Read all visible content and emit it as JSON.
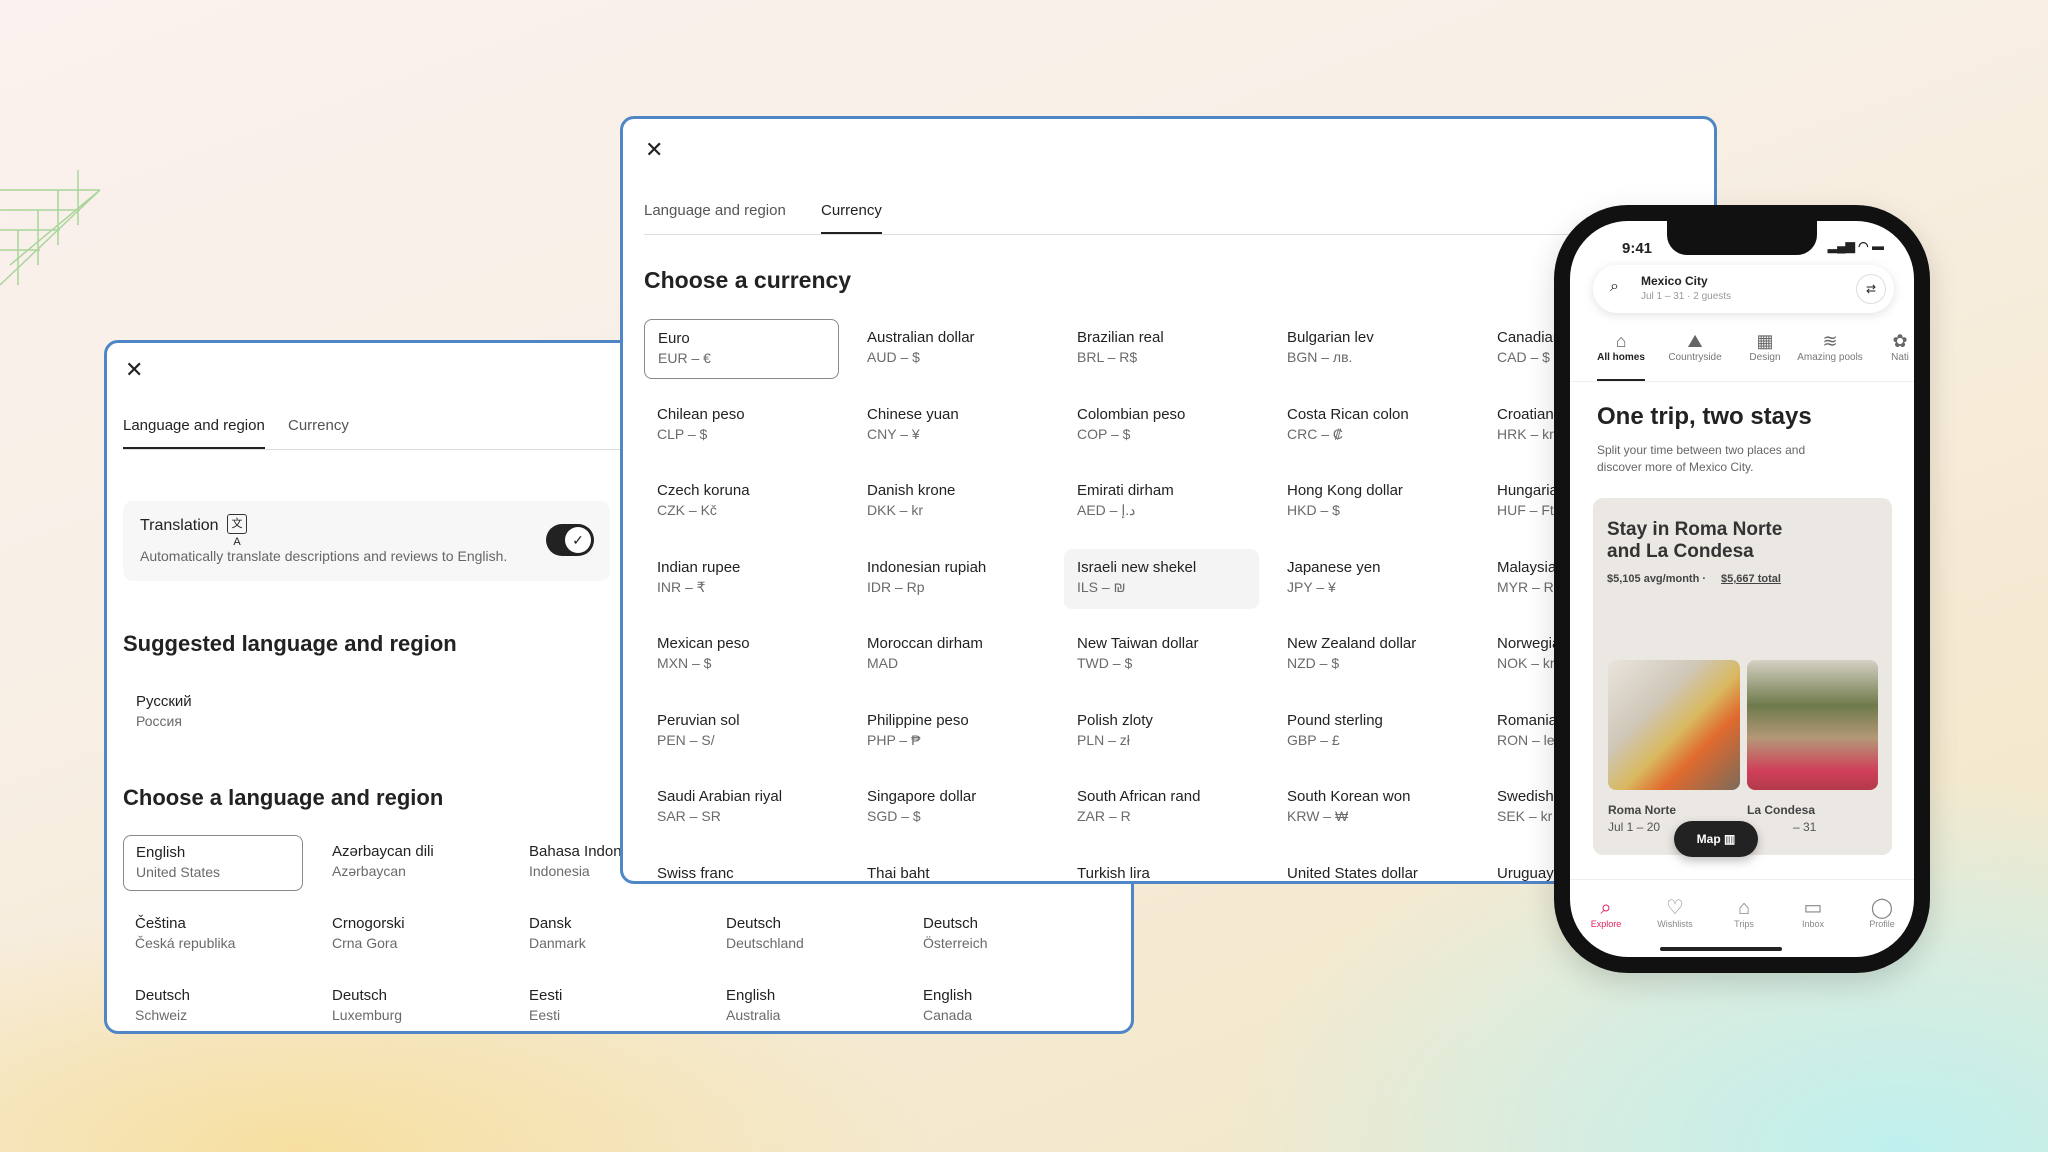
{
  "colors": {
    "accent": "#4f86c6",
    "brand": "#e0245e"
  },
  "currency_dialog": {
    "tabs": [
      "Language and region",
      "Currency"
    ],
    "active_tab": "Currency",
    "heading": "Choose a currency",
    "selected": "Euro",
    "currencies": [
      {
        "name": "Euro",
        "code": "EUR – €"
      },
      {
        "name": "Australian dollar",
        "code": "AUD – $"
      },
      {
        "name": "Brazilian real",
        "code": "BRL – R$"
      },
      {
        "name": "Bulgarian lev",
        "code": "BGN – лв."
      },
      {
        "name": "Canadian dollar",
        "code": "CAD – $"
      },
      {
        "name": "Chilean peso",
        "code": "CLP – $"
      },
      {
        "name": "Chinese yuan",
        "code": "CNY – ¥"
      },
      {
        "name": "Colombian peso",
        "code": "COP – $"
      },
      {
        "name": "Costa Rican colon",
        "code": "CRC – ₡"
      },
      {
        "name": "Croatian kuna",
        "code": "HRK – kn"
      },
      {
        "name": "Czech koruna",
        "code": "CZK – Kč"
      },
      {
        "name": "Danish krone",
        "code": "DKK – kr"
      },
      {
        "name": "Emirati dirham",
        "code": "AED – د.إ"
      },
      {
        "name": "Hong Kong dollar",
        "code": "HKD – $"
      },
      {
        "name": "Hungarian forint",
        "code": "HUF – Ft"
      },
      {
        "name": "Indian rupee",
        "code": "INR – ₹"
      },
      {
        "name": "Indonesian rupiah",
        "code": "IDR – Rp"
      },
      {
        "name": "Israeli new shekel",
        "code": "ILS – ₪"
      },
      {
        "name": "Japanese yen",
        "code": "JPY – ¥"
      },
      {
        "name": "Malaysian ringgit",
        "code": "MYR – RM"
      },
      {
        "name": "Mexican peso",
        "code": "MXN – $"
      },
      {
        "name": "Moroccan dirham",
        "code": "MAD"
      },
      {
        "name": "New Taiwan dollar",
        "code": "TWD – $"
      },
      {
        "name": "New Zealand dollar",
        "code": "NZD – $"
      },
      {
        "name": "Norwegian krone",
        "code": "NOK – kr"
      },
      {
        "name": "Peruvian sol",
        "code": "PEN – S/"
      },
      {
        "name": "Philippine peso",
        "code": "PHP – ₱"
      },
      {
        "name": "Polish zloty",
        "code": "PLN – zł"
      },
      {
        "name": "Pound sterling",
        "code": "GBP – £"
      },
      {
        "name": "Romanian leu",
        "code": "RON – lei"
      },
      {
        "name": "Saudi Arabian riyal",
        "code": "SAR – SR"
      },
      {
        "name": "Singapore dollar",
        "code": "SGD – $"
      },
      {
        "name": "South African rand",
        "code": "ZAR – R"
      },
      {
        "name": "South Korean won",
        "code": "KRW – ₩"
      },
      {
        "name": "Swedish krona",
        "code": "SEK – kr"
      },
      {
        "name": "Swiss franc",
        "code": ""
      },
      {
        "name": "Thai baht",
        "code": ""
      },
      {
        "name": "Turkish lira",
        "code": ""
      },
      {
        "name": "United States dollar",
        "code": ""
      },
      {
        "name": "Uruguayan peso",
        "code": ""
      }
    ]
  },
  "language_dialog": {
    "tabs": [
      "Language and region",
      "Currency"
    ],
    "active_tab": "Language and region",
    "translation": {
      "title": "Translation",
      "description": "Automatically translate descriptions and reviews to English.",
      "enabled": true
    },
    "suggested_heading": "Suggested language and region",
    "suggested": [
      {
        "name": "Русский",
        "region": "Россия"
      }
    ],
    "choose_heading": "Choose a language and region",
    "selected": "English",
    "languages": [
      {
        "name": "English",
        "region": "United States"
      },
      {
        "name": "Azərbaycan dili",
        "region": "Azərbaycan"
      },
      {
        "name": "Bahasa Indonesia",
        "region": "Indonesia"
      },
      {
        "name": "",
        "region": ""
      },
      {
        "name": "",
        "region": ""
      },
      {
        "name": "Čeština",
        "region": "Česká republika"
      },
      {
        "name": "Crnogorski",
        "region": "Crna Gora"
      },
      {
        "name": "Dansk",
        "region": "Danmark"
      },
      {
        "name": "Deutsch",
        "region": "Deutschland"
      },
      {
        "name": "Deutsch",
        "region": "Österreich"
      },
      {
        "name": "Deutsch",
        "region": "Schweiz"
      },
      {
        "name": "Deutsch",
        "region": "Luxemburg"
      },
      {
        "name": "Eesti",
        "region": "Eesti"
      },
      {
        "name": "English",
        "region": "Australia"
      },
      {
        "name": "English",
        "region": "Canada"
      }
    ]
  },
  "phone": {
    "time": "9:41",
    "search": {
      "location": "Mexico City",
      "details": "Jul 1 – 31 · 2 guests"
    },
    "categories": [
      "All homes",
      "Countryside",
      "Design",
      "Amazing pools",
      "Nati"
    ],
    "active_category": "All homes",
    "title": "One trip, two stays",
    "subtitle_1": "Split your time between two places and",
    "subtitle_2": "discover more of Mexico City.",
    "card": {
      "title_1": "Stay in Roma Norte",
      "title_2": "and La Condesa",
      "price": "$5,105 avg/month ·",
      "total": "$5,667 total",
      "stays": [
        {
          "name": "Roma Norte",
          "dates": "Jul 1 – 20"
        },
        {
          "name": "La Condesa",
          "dates": "– 31"
        }
      ]
    },
    "map_button": "Map",
    "nav": [
      "Explore",
      "Wishlists",
      "Trips",
      "Inbox",
      "Profile"
    ],
    "active_nav": "Explore"
  }
}
